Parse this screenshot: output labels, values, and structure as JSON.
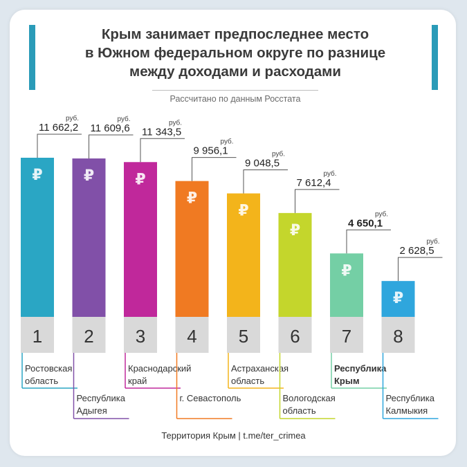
{
  "header": {
    "title_lines": [
      "Крым занимает предпоследнее место",
      "в Южном федеральном округе по разнице",
      "между доходами и расходами"
    ],
    "subtitle": "Рассчитано по данным Росстата",
    "accent_color": "#2a9bb8"
  },
  "footer": {
    "text": "Территория Крым | t.me/ter_crimea"
  },
  "chart_data": {
    "type": "bar",
    "title": "Крым занимает предпоследнее место в Южном федеральном округе по разнице между доходами и расходами",
    "subtitle": "Рассчитано по данным Росстата",
    "unit": "руб.",
    "currency_symbol": "₽",
    "ranks": [
      "1",
      "2",
      "3",
      "4",
      "5",
      "6",
      "7",
      "8"
    ],
    "categories": [
      "Ростовская область",
      "Республика Адыгея",
      "Краснодарский край",
      "г. Севастополь",
      "Астраханская область",
      "Вологодская область",
      "Республика Крым",
      "Республика Калмыкия"
    ],
    "category_lines": [
      [
        "Ростовская",
        "область"
      ],
      [
        "Республика",
        "Адыгея"
      ],
      [
        "Краснодарский",
        "край"
      ],
      [
        "г. Севастополь"
      ],
      [
        "Астраханская",
        "область"
      ],
      [
        "Вологодская",
        "область"
      ],
      [
        "Республика",
        "Крым"
      ],
      [
        "Республика",
        "Калмыкия"
      ]
    ],
    "values": [
      11662.2,
      11609.6,
      11343.5,
      9956.1,
      9048.5,
      7612.4,
      4650.1,
      2628.5
    ],
    "value_labels": [
      "11 662,2",
      "11 609,6",
      "11 343,5",
      "9 956,1",
      "9 048,5",
      "7 612,4",
      "4 650,1",
      "2 628,5"
    ],
    "highlight_index": 6,
    "colors": [
      "#2aa6c4",
      "#8150a8",
      "#c0289b",
      "#f07a22",
      "#f3b41b",
      "#c4d62c",
      "#74cfa5",
      "#2fa6dd"
    ]
  }
}
